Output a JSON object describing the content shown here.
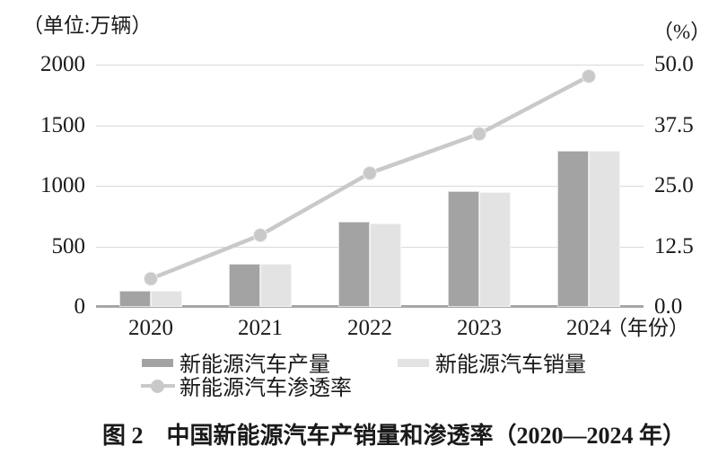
{
  "chart_data": {
    "type": "bar+line",
    "title": "图 2　中国新能源汽车产销量和渗透率（2020—2024 年）",
    "left_unit_label": "（单位:万辆）",
    "right_unit_label": "（%）",
    "x_axis_suffix": "（年份）",
    "categories": [
      "2020",
      "2021",
      "2022",
      "2023",
      "2024"
    ],
    "series": [
      {
        "name": "新能源汽车产量",
        "type": "bar",
        "color": "#a3a3a3",
        "values": [
          136.6,
          354.5,
          705.8,
          958.7,
          1288.8
        ]
      },
      {
        "name": "新能源汽车销量",
        "type": "bar",
        "color": "#e3e3e3",
        "values": [
          136.7,
          352.1,
          688.7,
          949.5,
          1286.6
        ]
      },
      {
        "name": "新能源汽车渗透率",
        "type": "line",
        "color": "#c9c9c9",
        "values": [
          5.8,
          14.8,
          27.6,
          35.7,
          47.6
        ]
      }
    ],
    "left_axis": {
      "ticks": [
        "2000",
        "1500",
        "1000",
        "500",
        "0"
      ],
      "min": 0,
      "max": 2000
    },
    "right_axis": {
      "ticks": [
        "50.0",
        "37.5",
        "25.0",
        "12.5",
        "0.0"
      ],
      "min": 0,
      "max": 50
    },
    "grid": "horizontal",
    "legend_position": "bottom",
    "colors": {
      "gridline": "#d9d9d9",
      "axis": "#a6a6a6",
      "text": "#1a1a1a"
    }
  }
}
